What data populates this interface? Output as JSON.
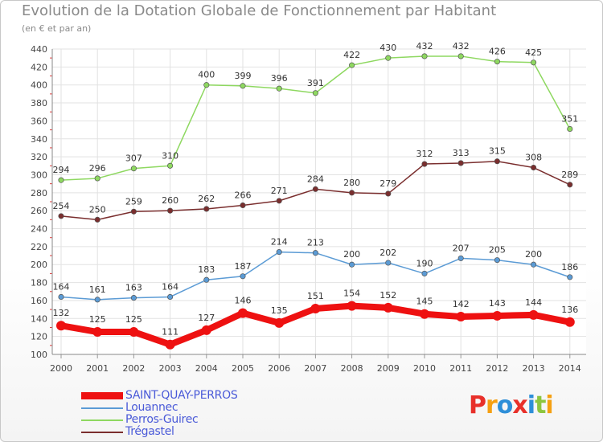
{
  "title": "Evolution de la Dotation Globale de Fonctionnement par Habitant",
  "subtitle": "(en € et par an)",
  "logo": {
    "text": "Proxiti",
    "colors": [
      "#e8302a",
      "#f5a012",
      "#2e8fd8",
      "#e8302a",
      "#2e8fd8",
      "#8dc63f",
      "#f5a012"
    ]
  },
  "chart_data": {
    "type": "line",
    "title": "Evolution de la Dotation Globale de Fonctionnement par Habitant",
    "subtitle": "(en € et par an)",
    "x": [
      "2000",
      "2001",
      "2002",
      "2003",
      "2004",
      "2005",
      "2006",
      "2007",
      "2008",
      "2009",
      "2010",
      "2011",
      "2012",
      "2013",
      "2014"
    ],
    "ylim": [
      100,
      440
    ],
    "yticks": [
      100,
      120,
      140,
      160,
      180,
      200,
      220,
      240,
      260,
      280,
      300,
      320,
      340,
      360,
      380,
      400,
      420,
      440
    ],
    "grid": true,
    "legend_position": "bottom-left",
    "series": [
      {
        "name": "Perros-Guirec",
        "color": "#8ed860",
        "values": [
          294,
          296,
          307,
          310,
          400,
          399,
          396,
          391,
          422,
          430,
          432,
          432,
          426,
          425,
          351
        ]
      },
      {
        "name": "Trégastel",
        "color": "#7a2e2e",
        "values": [
          254,
          250,
          259,
          260,
          262,
          266,
          271,
          284,
          280,
          279,
          312,
          313,
          315,
          308,
          289
        ]
      },
      {
        "name": "Louannec",
        "color": "#5b9bd5",
        "values": [
          164,
          161,
          163,
          164,
          183,
          187,
          214,
          213,
          200,
          202,
          190,
          207,
          205,
          200,
          186
        ]
      },
      {
        "name": "SAINT-QUAY-PERROS",
        "color": "#ee1111",
        "values": [
          132,
          125,
          125,
          111,
          127,
          146,
          135,
          151,
          154,
          152,
          145,
          142,
          143,
          144,
          136
        ]
      }
    ],
    "legend": [
      "SAINT-QUAY-PERROS",
      "Louannec",
      "Perros-Guirec",
      "Trégastel"
    ]
  }
}
